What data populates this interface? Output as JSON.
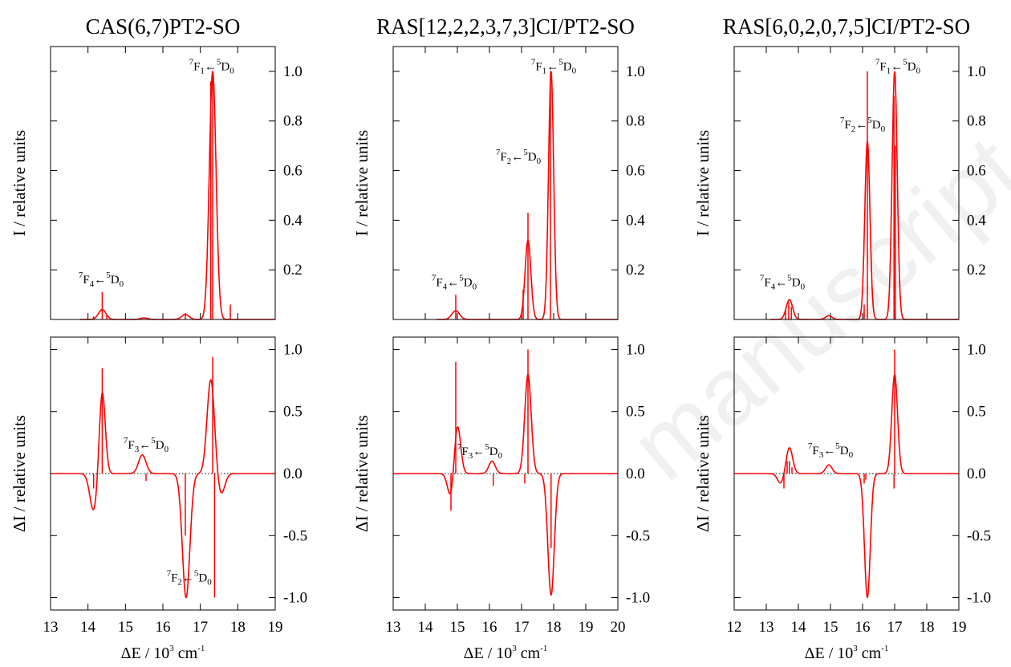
{
  "watermark": "manuscript",
  "chart_data": [
    {
      "type": "line",
      "column": 0,
      "row": "top",
      "title": "CAS(6,7)PT2-SO",
      "ylabel": "I / relative units",
      "xlim": [
        13,
        19
      ],
      "ylim": [
        0,
        1.1
      ],
      "yticks": [
        0.2,
        0.4,
        0.6,
        0.8,
        1.0
      ],
      "xticks": [
        13,
        14,
        15,
        16,
        17,
        18,
        19
      ],
      "series": [
        {
          "color": "#ff0000",
          "peaks": [
            {
              "center": 14.38,
              "height": 0.04,
              "width": 0.1
            },
            {
              "center": 15.5,
              "height": 0.006,
              "width": 0.1
            },
            {
              "center": 16.6,
              "height": 0.02,
              "width": 0.1
            },
            {
              "center": 17.33,
              "height": 1.0,
              "width": 0.09
            }
          ],
          "sticks": [
            [
              14.15,
              0.012
            ],
            [
              14.38,
              0.11
            ],
            [
              14.5,
              0.015
            ],
            [
              16.6,
              0.025
            ],
            [
              17.28,
              0.96
            ],
            [
              17.33,
              1.0
            ],
            [
              17.8,
              0.06
            ]
          ]
        }
      ],
      "annotations": [
        {
          "main": "F",
          "term1": "F",
          "sup1": "7",
          "sub1": "4",
          "term2": "D",
          "sup2": "5",
          "sub2": "0",
          "x": 14.35,
          "y": 0.145
        },
        {
          "term1": "F",
          "sup1": "7",
          "sub1": "1",
          "term2": "D",
          "sup2": "5",
          "sub2": "0",
          "x": 17.3,
          "y": 1.005
        }
      ]
    },
    {
      "type": "line",
      "column": 0,
      "row": "bottom",
      "ylabel": "ΔI / relative units",
      "xlabel": "ΔE / 10^3 cm^-1",
      "xlim": [
        13,
        19
      ],
      "ylim": [
        -1.1,
        1.1
      ],
      "yticks": [
        -1.0,
        -0.5,
        0.0,
        0.5,
        1.0
      ],
      "xticks": [
        13,
        14,
        15,
        16,
        17,
        18,
        19
      ],
      "series": [
        {
          "color": "#ff0000",
          "peaks": [
            {
              "center": 14.15,
              "height": -0.3,
              "width": 0.1
            },
            {
              "center": 14.38,
              "height": 0.67,
              "width": 0.08
            },
            {
              "center": 15.45,
              "height": 0.15,
              "width": 0.1
            },
            {
              "center": 16.62,
              "height": -1.0,
              "width": 0.1
            },
            {
              "center": 17.28,
              "height": 0.76,
              "width": 0.1
            },
            {
              "center": 17.55,
              "height": -0.17,
              "width": 0.1
            }
          ],
          "sticks": [
            [
              14.15,
              -0.12
            ],
            [
              14.38,
              0.85
            ],
            [
              15.55,
              -0.06
            ],
            [
              16.6,
              -0.5
            ],
            [
              17.33,
              0.94
            ],
            [
              17.38,
              -1.0
            ]
          ]
        }
      ],
      "annotations": [
        {
          "term1": "F",
          "sup1": "7",
          "sub1": "3",
          "term2": "D",
          "sup2": "5",
          "sub2": "0",
          "x": 15.55,
          "y": 0.2
        },
        {
          "term1": "F",
          "sup1": "7",
          "sub1": "2",
          "term2": "D",
          "sup2": "5",
          "sub2": "0",
          "x": 16.7,
          "y": -0.87
        }
      ]
    },
    {
      "type": "line",
      "column": 1,
      "row": "top",
      "title": "RAS[12,2,2,3,7,3]CI/PT2-SO",
      "ylabel": "I / relative units",
      "xlim": [
        13,
        20
      ],
      "ylim": [
        0,
        1.1
      ],
      "yticks": [
        0.2,
        0.4,
        0.6,
        0.8,
        1.0
      ],
      "xticks": [
        13,
        14,
        15,
        16,
        17,
        18,
        19,
        20
      ],
      "series": [
        {
          "color": "#ff0000",
          "peaks": [
            {
              "center": 14.95,
              "height": 0.035,
              "width": 0.12
            },
            {
              "center": 17.2,
              "height": 0.32,
              "width": 0.09
            },
            {
              "center": 17.92,
              "height": 1.0,
              "width": 0.08
            }
          ],
          "sticks": [
            [
              14.95,
              0.1
            ],
            [
              17.05,
              0.12
            ],
            [
              17.2,
              0.43
            ],
            [
              17.9,
              1.0
            ]
          ]
        }
      ],
      "annotations": [
        {
          "term1": "F",
          "sup1": "7",
          "sub1": "4",
          "term2": "D",
          "sup2": "5",
          "sub2": "0",
          "x": 14.9,
          "y": 0.135
        },
        {
          "term1": "F",
          "sup1": "7",
          "sub1": "2",
          "term2": "D",
          "sup2": "5",
          "sub2": "0",
          "x": 16.9,
          "y": 0.64
        },
        {
          "term1": "F",
          "sup1": "7",
          "sub1": "1",
          "term2": "D",
          "sup2": "5",
          "sub2": "0",
          "x": 18.0,
          "y": 1.005
        }
      ]
    },
    {
      "type": "line",
      "column": 1,
      "row": "bottom",
      "ylabel": "ΔI / relative units",
      "xlabel": "ΔE / 10^3 cm^-1",
      "xlim": [
        13,
        20
      ],
      "ylim": [
        -1.1,
        1.1
      ],
      "yticks": [
        -1.0,
        -0.5,
        0.0,
        0.5,
        1.0
      ],
      "xticks": [
        13,
        14,
        15,
        16,
        17,
        18,
        19,
        20
      ],
      "series": [
        {
          "color": "#ff0000",
          "peaks": [
            {
              "center": 14.8,
              "height": -0.2,
              "width": 0.1
            },
            {
              "center": 15.0,
              "height": 0.4,
              "width": 0.1
            },
            {
              "center": 16.08,
              "height": 0.1,
              "width": 0.1
            },
            {
              "center": 17.2,
              "height": 0.8,
              "width": 0.1
            },
            {
              "center": 17.92,
              "height": -0.98,
              "width": 0.1
            }
          ],
          "sticks": [
            [
              14.8,
              -0.3
            ],
            [
              14.95,
              0.9
            ],
            [
              16.12,
              -0.1
            ],
            [
              17.1,
              -0.08
            ],
            [
              17.2,
              1.0
            ],
            [
              17.92,
              -0.6
            ]
          ]
        }
      ],
      "annotations": [
        {
          "term1": "F",
          "sup1": "7",
          "sub1": "3",
          "term2": "D",
          "sup2": "5",
          "sub2": "0",
          "x": 15.7,
          "y": 0.15
        }
      ]
    },
    {
      "type": "line",
      "column": 2,
      "row": "top",
      "title": "RAS[6,0,2,0,7,5]CI/PT2-SO",
      "ylabel": "I / relative units",
      "xlim": [
        12,
        19
      ],
      "ylim": [
        0,
        1.1
      ],
      "yticks": [
        0.2,
        0.4,
        0.6,
        0.8,
        1.0
      ],
      "xticks": [
        12,
        13,
        14,
        15,
        16,
        17,
        18,
        19
      ],
      "series": [
        {
          "color": "#ff0000",
          "peaks": [
            {
              "center": 13.72,
              "height": 0.08,
              "width": 0.1
            },
            {
              "center": 14.95,
              "height": 0.015,
              "width": 0.1
            },
            {
              "center": 16.15,
              "height": 0.72,
              "width": 0.08
            },
            {
              "center": 17.0,
              "height": 1.0,
              "width": 0.08
            }
          ],
          "sticks": [
            [
              13.6,
              0.04
            ],
            [
              13.7,
              0.07
            ],
            [
              13.78,
              0.05
            ],
            [
              16.05,
              0.06
            ],
            [
              16.15,
              1.0
            ],
            [
              16.98,
              0.9
            ],
            [
              17.02,
              0.7
            ]
          ]
        }
      ],
      "annotations": [
        {
          "term1": "F",
          "sup1": "7",
          "sub1": "4",
          "term2": "D",
          "sup2": "5",
          "sub2": "0",
          "x": 13.5,
          "y": 0.135
        },
        {
          "term1": "F",
          "sup1": "7",
          "sub1": "2",
          "term2": "D",
          "sup2": "5",
          "sub2": "0",
          "x": 16.0,
          "y": 0.77
        },
        {
          "term1": "F",
          "sup1": "7",
          "sub1": "1",
          "term2": "D",
          "sup2": "5",
          "sub2": "0",
          "x": 17.1,
          "y": 1.005
        }
      ]
    },
    {
      "type": "line",
      "column": 2,
      "row": "bottom",
      "ylabel": "ΔI / relative units",
      "xlabel": "ΔE / 10^3 cm^-1",
      "xlim": [
        12,
        19
      ],
      "ylim": [
        -1.1,
        1.1
      ],
      "yticks": [
        -1.0,
        -0.5,
        0.0,
        0.5,
        1.0
      ],
      "xticks": [
        12,
        13,
        14,
        15,
        16,
        17,
        18,
        19
      ],
      "series": [
        {
          "color": "#ff0000",
          "peaks": [
            {
              "center": 13.45,
              "height": -0.08,
              "width": 0.1
            },
            {
              "center": 13.72,
              "height": 0.21,
              "width": 0.1
            },
            {
              "center": 14.95,
              "height": 0.07,
              "width": 0.1
            },
            {
              "center": 16.15,
              "height": -1.0,
              "width": 0.09
            },
            {
              "center": 17.0,
              "height": 0.8,
              "width": 0.09
            }
          ],
          "sticks": [
            [
              13.55,
              -0.12
            ],
            [
              13.65,
              0.1
            ],
            [
              13.72,
              0.1
            ],
            [
              13.8,
              0.05
            ],
            [
              16.05,
              -0.08
            ],
            [
              16.1,
              -0.05
            ],
            [
              16.98,
              -0.12
            ],
            [
              17.0,
              1.0
            ]
          ]
        }
      ],
      "annotations": [
        {
          "term1": "F",
          "sup1": "7",
          "sub1": "3",
          "term2": "D",
          "sup2": "5",
          "sub2": "0",
          "x": 15.0,
          "y": 0.155
        }
      ]
    }
  ]
}
